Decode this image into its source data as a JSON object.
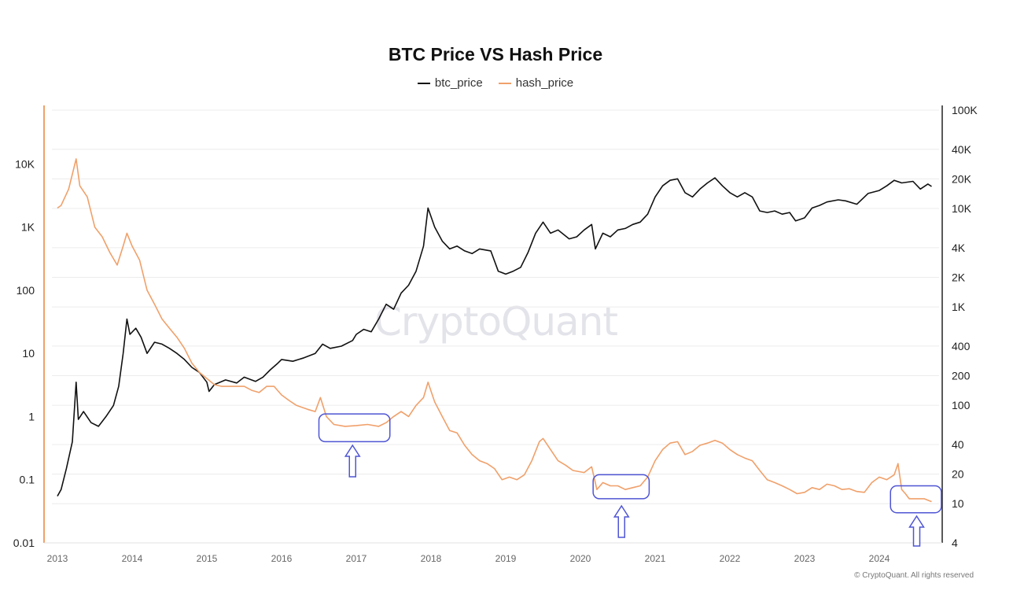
{
  "title": "BTC Price VS Hash Price",
  "copyright": "© CryptoQuant. All rights reserved",
  "watermark": "CryptoQuant",
  "colors": {
    "btc": "#111111",
    "hash": "#f0a06a",
    "annotation": "#4f55d4",
    "grid": "#ececec",
    "left_axis": "#f0a06a"
  },
  "chart_data": {
    "type": "line",
    "title": "BTC Price VS Hash Price",
    "legend_position": "top-center",
    "grid": true,
    "x_ticks": [
      "2013",
      "2014",
      "2015",
      "2016",
      "2017",
      "2018",
      "2019",
      "2020",
      "2021",
      "2022",
      "2023",
      "2024"
    ],
    "x_range": [
      2013.0,
      2024.75
    ],
    "left_axis": {
      "scale": "log",
      "range": [
        0.01,
        40000
      ],
      "ticks": [
        {
          "v": 0.01,
          "label": "0.01"
        },
        {
          "v": 0.1,
          "label": "0.1"
        },
        {
          "v": 1,
          "label": "1"
        },
        {
          "v": 10,
          "label": "10"
        },
        {
          "v": 100,
          "label": "100"
        },
        {
          "v": 1000,
          "label": "1K"
        },
        {
          "v": 10000,
          "label": "10K"
        }
      ]
    },
    "right_axis": {
      "scale": "log",
      "range": [
        4,
        100000
      ],
      "ticks": [
        {
          "v": 4,
          "label": "4"
        },
        {
          "v": 10,
          "label": "10"
        },
        {
          "v": 20,
          "label": "20"
        },
        {
          "v": 40,
          "label": "40"
        },
        {
          "v": 100,
          "label": "100"
        },
        {
          "v": 200,
          "label": "200"
        },
        {
          "v": 400,
          "label": "400"
        },
        {
          "v": 1000,
          "label": "1K"
        },
        {
          "v": 2000,
          "label": "2K"
        },
        {
          "v": 4000,
          "label": "4K"
        },
        {
          "v": 10000,
          "label": "10K"
        },
        {
          "v": 20000,
          "label": "20K"
        },
        {
          "v": 40000,
          "label": "40K"
        },
        {
          "v": 100000,
          "label": "100K"
        }
      ]
    },
    "series": [
      {
        "name": "btc_price",
        "axis": "left",
        "points": [
          [
            2013.0,
            0.055
          ],
          [
            2013.05,
            0.07
          ],
          [
            2013.12,
            0.15
          ],
          [
            2013.2,
            0.4
          ],
          [
            2013.25,
            3.5
          ],
          [
            2013.28,
            0.9
          ],
          [
            2013.35,
            1.2
          ],
          [
            2013.45,
            0.8
          ],
          [
            2013.55,
            0.7
          ],
          [
            2013.65,
            1.0
          ],
          [
            2013.75,
            1.5
          ],
          [
            2013.82,
            3.0
          ],
          [
            2013.88,
            10
          ],
          [
            2013.93,
            35
          ],
          [
            2013.97,
            20
          ],
          [
            2014.05,
            25
          ],
          [
            2014.12,
            18
          ],
          [
            2014.2,
            10
          ],
          [
            2014.3,
            15
          ],
          [
            2014.4,
            14
          ],
          [
            2014.5,
            12
          ],
          [
            2014.6,
            10
          ],
          [
            2014.7,
            8
          ],
          [
            2014.8,
            6
          ],
          [
            2014.9,
            5
          ],
          [
            2015.0,
            3.5
          ],
          [
            2015.03,
            2.5
          ],
          [
            2015.1,
            3.2
          ],
          [
            2015.25,
            3.8
          ],
          [
            2015.4,
            3.4
          ],
          [
            2015.5,
            4.2
          ],
          [
            2015.65,
            3.6
          ],
          [
            2015.75,
            4.2
          ],
          [
            2015.85,
            5.5
          ],
          [
            2015.95,
            7.0
          ],
          [
            2016.0,
            8.0
          ],
          [
            2016.15,
            7.5
          ],
          [
            2016.3,
            8.5
          ],
          [
            2016.45,
            10
          ],
          [
            2016.55,
            14
          ],
          [
            2016.65,
            12
          ],
          [
            2016.8,
            13
          ],
          [
            2016.95,
            16
          ],
          [
            2017.0,
            20
          ],
          [
            2017.1,
            24
          ],
          [
            2017.2,
            22
          ],
          [
            2017.3,
            35
          ],
          [
            2017.4,
            60
          ],
          [
            2017.5,
            50
          ],
          [
            2017.6,
            90
          ],
          [
            2017.7,
            120
          ],
          [
            2017.8,
            200
          ],
          [
            2017.9,
            500
          ],
          [
            2017.96,
            2000
          ],
          [
            2018.05,
            1000
          ],
          [
            2018.15,
            600
          ],
          [
            2018.25,
            450
          ],
          [
            2018.35,
            500
          ],
          [
            2018.45,
            420
          ],
          [
            2018.55,
            380
          ],
          [
            2018.65,
            450
          ],
          [
            2018.8,
            420
          ],
          [
            2018.9,
            200
          ],
          [
            2019.0,
            180
          ],
          [
            2019.1,
            200
          ],
          [
            2019.2,
            230
          ],
          [
            2019.3,
            400
          ],
          [
            2019.4,
            800
          ],
          [
            2019.5,
            1200
          ],
          [
            2019.6,
            800
          ],
          [
            2019.7,
            900
          ],
          [
            2019.85,
            650
          ],
          [
            2019.95,
            700
          ],
          [
            2020.05,
            900
          ],
          [
            2020.15,
            1100
          ],
          [
            2020.2,
            450
          ],
          [
            2020.3,
            800
          ],
          [
            2020.4,
            700
          ],
          [
            2020.5,
            900
          ],
          [
            2020.6,
            950
          ],
          [
            2020.7,
            1100
          ],
          [
            2020.8,
            1200
          ],
          [
            2020.9,
            1600
          ],
          [
            2021.0,
            3000
          ],
          [
            2021.1,
            4500
          ],
          [
            2021.2,
            5500
          ],
          [
            2021.3,
            5800
          ],
          [
            2021.4,
            3500
          ],
          [
            2021.5,
            3000
          ],
          [
            2021.6,
            4000
          ],
          [
            2021.7,
            5000
          ],
          [
            2021.8,
            6000
          ],
          [
            2021.9,
            4500
          ],
          [
            2022.0,
            3500
          ],
          [
            2022.1,
            3000
          ],
          [
            2022.2,
            3500
          ],
          [
            2022.3,
            3000
          ],
          [
            2022.4,
            1800
          ],
          [
            2022.5,
            1700
          ],
          [
            2022.6,
            1800
          ],
          [
            2022.7,
            1600
          ],
          [
            2022.8,
            1700
          ],
          [
            2022.88,
            1250
          ],
          [
            2023.0,
            1400
          ],
          [
            2023.1,
            2000
          ],
          [
            2023.2,
            2200
          ],
          [
            2023.3,
            2500
          ],
          [
            2023.45,
            2700
          ],
          [
            2023.55,
            2600
          ],
          [
            2023.7,
            2300
          ],
          [
            2023.85,
            3400
          ],
          [
            2024.0,
            3800
          ],
          [
            2024.1,
            4500
          ],
          [
            2024.2,
            5500
          ],
          [
            2024.3,
            5000
          ],
          [
            2024.45,
            5300
          ],
          [
            2024.55,
            4000
          ],
          [
            2024.65,
            4800
          ],
          [
            2024.7,
            4400
          ]
        ]
      },
      {
        "name": "hash_price",
        "axis": "left",
        "points": [
          [
            2013.0,
            2000
          ],
          [
            2013.05,
            2200
          ],
          [
            2013.15,
            4000
          ],
          [
            2013.25,
            12000
          ],
          [
            2013.3,
            4500
          ],
          [
            2013.4,
            3000
          ],
          [
            2013.5,
            1000
          ],
          [
            2013.6,
            700
          ],
          [
            2013.7,
            400
          ],
          [
            2013.8,
            250
          ],
          [
            2013.88,
            500
          ],
          [
            2013.93,
            800
          ],
          [
            2014.0,
            500
          ],
          [
            2014.1,
            300
          ],
          [
            2014.2,
            100
          ],
          [
            2014.3,
            60
          ],
          [
            2014.4,
            35
          ],
          [
            2014.5,
            25
          ],
          [
            2014.6,
            18
          ],
          [
            2014.7,
            12
          ],
          [
            2014.8,
            7
          ],
          [
            2014.9,
            5
          ],
          [
            2015.0,
            4
          ],
          [
            2015.1,
            3.2
          ],
          [
            2015.2,
            3.0
          ],
          [
            2015.35,
            3.0
          ],
          [
            2015.5,
            3.0
          ],
          [
            2015.6,
            2.6
          ],
          [
            2015.7,
            2.4
          ],
          [
            2015.8,
            3.0
          ],
          [
            2015.9,
            3.0
          ],
          [
            2016.0,
            2.2
          ],
          [
            2016.1,
            1.8
          ],
          [
            2016.2,
            1.5
          ],
          [
            2016.35,
            1.3
          ],
          [
            2016.45,
            1.2
          ],
          [
            2016.52,
            2.0
          ],
          [
            2016.6,
            1.0
          ],
          [
            2016.7,
            0.75
          ],
          [
            2016.85,
            0.7
          ],
          [
            2017.0,
            0.72
          ],
          [
            2017.15,
            0.75
          ],
          [
            2017.3,
            0.7
          ],
          [
            2017.4,
            0.8
          ],
          [
            2017.5,
            1.0
          ],
          [
            2017.6,
            1.2
          ],
          [
            2017.7,
            1.0
          ],
          [
            2017.8,
            1.5
          ],
          [
            2017.9,
            2.0
          ],
          [
            2017.96,
            3.5
          ],
          [
            2018.05,
            1.7
          ],
          [
            2018.15,
            1.0
          ],
          [
            2018.25,
            0.6
          ],
          [
            2018.35,
            0.55
          ],
          [
            2018.45,
            0.35
          ],
          [
            2018.55,
            0.25
          ],
          [
            2018.65,
            0.2
          ],
          [
            2018.75,
            0.18
          ],
          [
            2018.85,
            0.15
          ],
          [
            2018.95,
            0.1
          ],
          [
            2019.05,
            0.11
          ],
          [
            2019.15,
            0.1
          ],
          [
            2019.25,
            0.12
          ],
          [
            2019.35,
            0.2
          ],
          [
            2019.45,
            0.4
          ],
          [
            2019.5,
            0.45
          ],
          [
            2019.6,
            0.3
          ],
          [
            2019.7,
            0.2
          ],
          [
            2019.8,
            0.17
          ],
          [
            2019.9,
            0.14
          ],
          [
            2020.05,
            0.13
          ],
          [
            2020.15,
            0.16
          ],
          [
            2020.22,
            0.07
          ],
          [
            2020.3,
            0.09
          ],
          [
            2020.4,
            0.08
          ],
          [
            2020.5,
            0.08
          ],
          [
            2020.6,
            0.07
          ],
          [
            2020.7,
            0.075
          ],
          [
            2020.8,
            0.08
          ],
          [
            2020.9,
            0.11
          ],
          [
            2021.0,
            0.2
          ],
          [
            2021.1,
            0.3
          ],
          [
            2021.2,
            0.38
          ],
          [
            2021.3,
            0.4
          ],
          [
            2021.4,
            0.25
          ],
          [
            2021.5,
            0.28
          ],
          [
            2021.6,
            0.35
          ],
          [
            2021.7,
            0.38
          ],
          [
            2021.8,
            0.42
          ],
          [
            2021.9,
            0.38
          ],
          [
            2022.0,
            0.3
          ],
          [
            2022.1,
            0.25
          ],
          [
            2022.2,
            0.22
          ],
          [
            2022.3,
            0.2
          ],
          [
            2022.4,
            0.14
          ],
          [
            2022.5,
            0.1
          ],
          [
            2022.6,
            0.09
          ],
          [
            2022.7,
            0.08
          ],
          [
            2022.8,
            0.07
          ],
          [
            2022.9,
            0.06
          ],
          [
            2023.0,
            0.063
          ],
          [
            2023.1,
            0.075
          ],
          [
            2023.2,
            0.07
          ],
          [
            2023.3,
            0.085
          ],
          [
            2023.4,
            0.08
          ],
          [
            2023.5,
            0.07
          ],
          [
            2023.6,
            0.072
          ],
          [
            2023.7,
            0.065
          ],
          [
            2023.8,
            0.063
          ],
          [
            2023.9,
            0.09
          ],
          [
            2024.0,
            0.11
          ],
          [
            2024.1,
            0.1
          ],
          [
            2024.2,
            0.12
          ],
          [
            2024.25,
            0.18
          ],
          [
            2024.3,
            0.07
          ],
          [
            2024.35,
            0.06
          ],
          [
            2024.4,
            0.05
          ],
          [
            2024.5,
            0.05
          ],
          [
            2024.6,
            0.05
          ],
          [
            2024.7,
            0.045
          ]
        ]
      }
    ],
    "annotations": [
      {
        "type": "box",
        "x_range": [
          2016.5,
          2017.45
        ],
        "y_range": [
          0.4,
          1.1
        ],
        "axis": "left"
      },
      {
        "type": "arrow-up",
        "x": 2016.95
      },
      {
        "type": "box",
        "x_range": [
          2020.17,
          2020.92
        ],
        "y_range": [
          0.05,
          0.12
        ],
        "axis": "left"
      },
      {
        "type": "arrow-up",
        "x": 2020.55
      },
      {
        "type": "box",
        "x_range": [
          2024.15,
          2024.83
        ],
        "y_range": [
          0.03,
          0.08
        ],
        "axis": "left"
      },
      {
        "type": "arrow-up",
        "x": 2024.5
      }
    ]
  }
}
